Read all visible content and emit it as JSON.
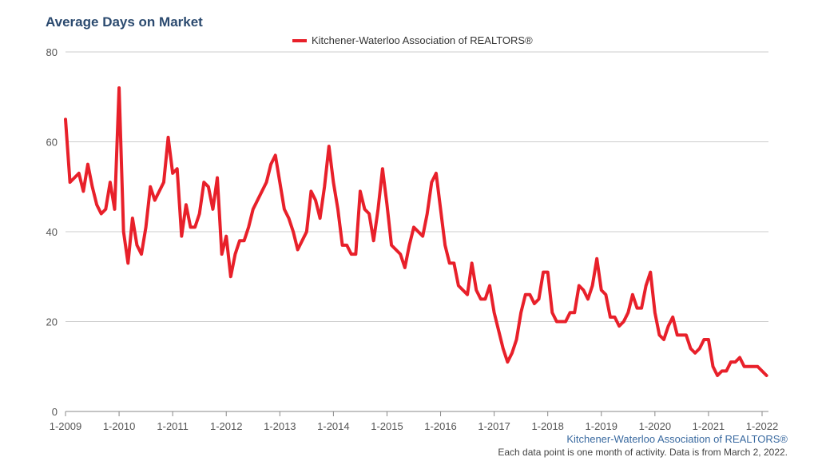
{
  "colors": {
    "series": "#e8202a",
    "title": "#2b4a6f",
    "grid": "#cccccc",
    "axis": "#555555",
    "source": "#3a6aa0"
  },
  "footer": {
    "source": "Kitchener-Waterloo Association of REALTORS®",
    "note": "Each data point is one month of activity. Data is from March 2, 2022."
  },
  "chart_data": {
    "type": "line",
    "title": "Average Days on Market",
    "xlabel": "",
    "ylabel": "",
    "ylim": [
      0,
      80
    ],
    "yticks": [
      0,
      20,
      40,
      60,
      80
    ],
    "grid": true,
    "legend_position": "top-center",
    "x_start": "2009-01",
    "x_tick_labels": [
      "1-2009",
      "1-2010",
      "1-2011",
      "1-2012",
      "1-2013",
      "1-2014",
      "1-2015",
      "1-2016",
      "1-2017",
      "1-2018",
      "1-2019",
      "1-2020",
      "1-2021",
      "1-2022"
    ],
    "series": [
      {
        "name": "Kitchener-Waterloo Association of REALTORS®",
        "color": "#e8202a",
        "values": [
          65,
          51,
          52,
          53,
          49,
          55,
          50,
          46,
          44,
          45,
          51,
          45,
          72,
          40,
          33,
          43,
          37,
          35,
          41,
          50,
          47,
          49,
          51,
          61,
          53,
          54,
          39,
          46,
          41,
          41,
          44,
          51,
          50,
          45,
          52,
          35,
          39,
          30,
          35,
          38,
          38,
          41,
          45,
          47,
          49,
          51,
          55,
          57,
          51,
          45,
          43,
          40,
          36,
          38,
          40,
          49,
          47,
          43,
          50,
          59,
          51,
          45,
          37,
          37,
          35,
          35,
          49,
          45,
          44,
          38,
          45,
          54,
          46,
          37,
          36,
          35,
          32,
          37,
          41,
          40,
          39,
          44,
          51,
          53,
          45,
          37,
          33,
          33,
          28,
          27,
          26,
          33,
          27,
          25,
          25,
          28,
          22,
          18,
          14,
          11,
          13,
          16,
          22,
          26,
          26,
          24,
          25,
          31,
          31,
          22,
          20,
          20,
          20,
          22,
          22,
          28,
          27,
          25,
          28,
          34,
          27,
          26,
          21,
          21,
          19,
          20,
          22,
          26,
          23,
          23,
          28,
          31,
          22,
          17,
          16,
          19,
          21,
          17,
          17,
          17,
          14,
          13,
          14,
          16,
          16,
          10,
          8,
          9,
          9,
          11,
          11,
          12,
          10,
          10,
          10,
          10,
          9,
          8
        ]
      }
    ]
  }
}
